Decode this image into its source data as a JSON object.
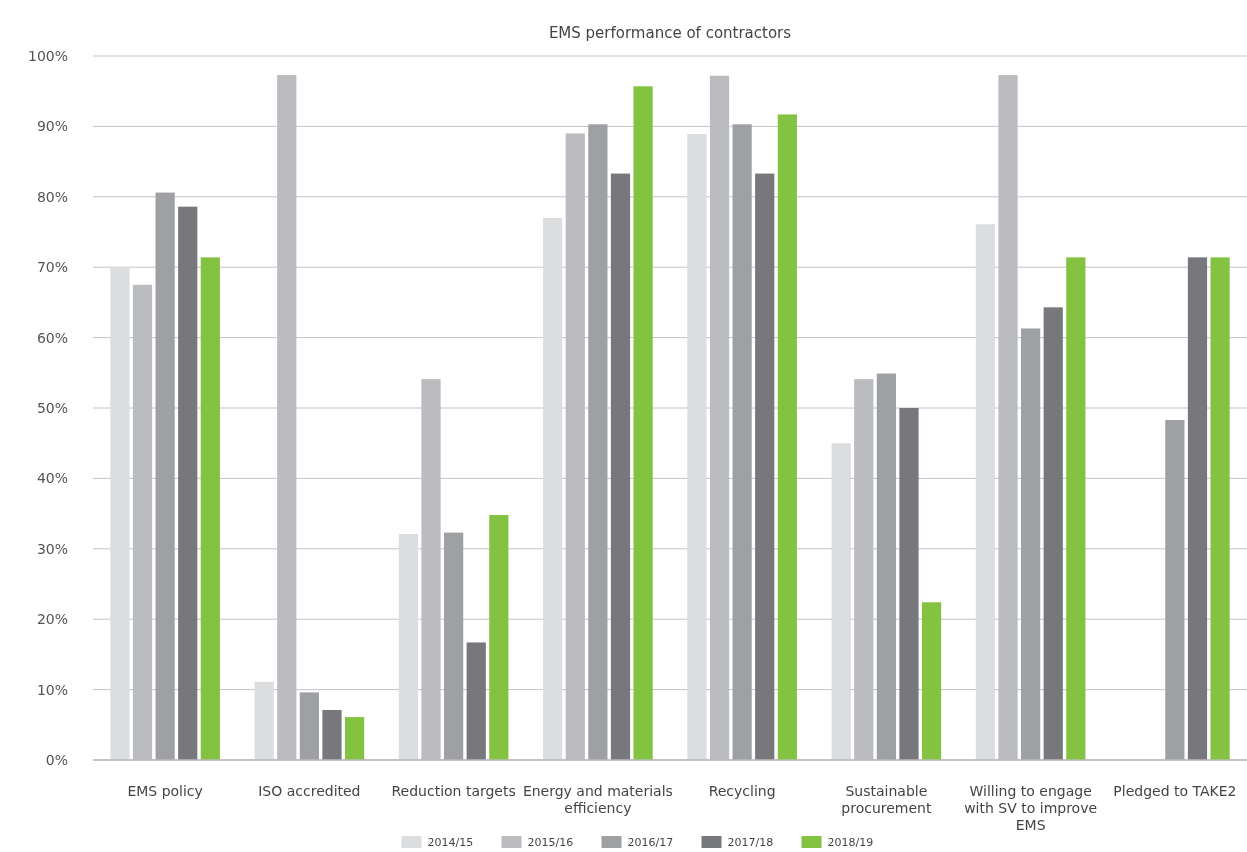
{
  "chart_data": {
    "type": "bar",
    "title": "EMS performance of contractors",
    "categories": [
      "EMS policy",
      "ISO accredited",
      "Reduction targets",
      "Energy and materials efficiency",
      "Recycling",
      "Sustainable procurement",
      "Willing to engage with SV to improve EMS",
      "Pledged to TAKE2"
    ],
    "series": [
      {
        "name": "2014/15",
        "color": "#dcdddf",
        "values": [
          70.0,
          11.1,
          32.1,
          77.0,
          88.9,
          45.0,
          76.1,
          null
        ]
      },
      {
        "name": "2015/16",
        "color": "#bbbcc0",
        "values": [
          67.5,
          97.3,
          54.1,
          89.0,
          97.2,
          54.1,
          97.3,
          null
        ]
      },
      {
        "name": "2016/17",
        "color": "#9fa0a4",
        "values": [
          80.6,
          9.6,
          32.3,
          90.3,
          90.3,
          54.9,
          61.3,
          48.3
        ]
      },
      {
        "name": "2017/18",
        "color": "#77787c",
        "values": [
          78.6,
          7.1,
          16.7,
          83.3,
          83.3,
          50.0,
          64.3,
          71.4
        ]
      },
      {
        "name": "2018/19",
        "color": "#83c341",
        "values": [
          71.4,
          6.1,
          34.8,
          95.7,
          91.7,
          22.4,
          71.4,
          71.4
        ]
      }
    ],
    "ylim": [
      0,
      100
    ],
    "yticks": [
      {
        "value": 0,
        "label": "0%"
      },
      {
        "value": 10,
        "label": "10%"
      },
      {
        "value": 20,
        "label": "20%"
      },
      {
        "value": 30,
        "label": "30%"
      },
      {
        "value": 40,
        "label": "40%"
      },
      {
        "value": 50,
        "label": "50%"
      },
      {
        "value": 60,
        "label": "60%"
      },
      {
        "value": 70,
        "label": "70%"
      },
      {
        "value": 80,
        "label": "80%"
      },
      {
        "value": 90,
        "label": "90%"
      },
      {
        "value": 100,
        "label": "100%"
      }
    ],
    "grid": "y",
    "legend": "bottom"
  }
}
